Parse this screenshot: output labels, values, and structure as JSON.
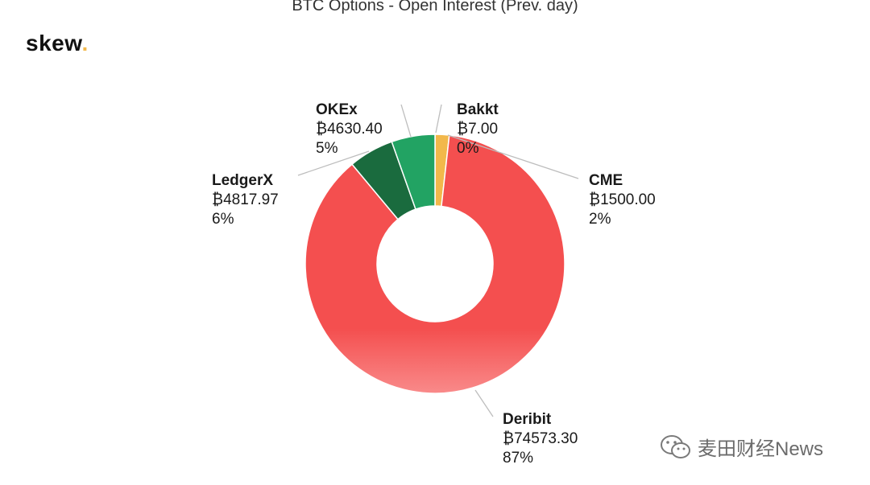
{
  "header": {
    "title": "BTC Options - Open Interest (Prev. day)",
    "logo_text": "skew",
    "logo_dot": "."
  },
  "watermark": {
    "text": "麦田财经News",
    "icon": "wechat-icon"
  },
  "chart_data": {
    "type": "pie",
    "donut": true,
    "title": "BTC Options - Open Interest (Prev. day)",
    "slices": [
      {
        "name": "Bakkt",
        "value": 7.0,
        "value_label": "₿7.00",
        "percent_label": "0%",
        "color": "#f5c97a"
      },
      {
        "name": "CME",
        "value": 1500.0,
        "value_label": "₿1500.00",
        "percent_label": "2%",
        "color": "#f2b84b"
      },
      {
        "name": "Deribit",
        "value": 74573.3,
        "value_label": "₿74573.30",
        "percent_label": "87%",
        "color": "#f55b5b"
      },
      {
        "name": "LedgerX",
        "value": 4817.97,
        "value_label": "₿4817.97",
        "percent_label": "6%",
        "color": "#1a6b3e"
      },
      {
        "name": "OKEx",
        "value": 4630.4,
        "value_label": "₿4630.40",
        "percent_label": "5%",
        "color": "#22a363"
      }
    ]
  }
}
